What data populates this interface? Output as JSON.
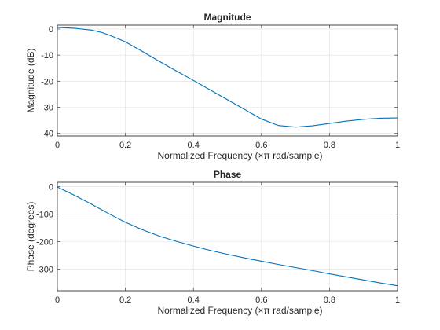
{
  "chart_data": [
    {
      "type": "line",
      "title": "Magnitude",
      "xlabel": "Normalized  Frequency    (×π  rad/sample)",
      "ylabel": "Magnitude (dB)",
      "xlim": [
        0,
        1
      ],
      "ylim": [
        -41,
        1.5
      ],
      "xticks": [
        0,
        0.2,
        0.4,
        0.6,
        0.8,
        1
      ],
      "xtick_labels": [
        "0",
        "0.2",
        "0.4",
        "0.6",
        "0.8",
        "1"
      ],
      "yticks": [
        0,
        -10,
        -20,
        -30,
        -40
      ],
      "ytick_labels": [
        "0",
        "-10",
        "-20",
        "-30",
        "-40"
      ],
      "grid": true,
      "color": "#0072bd",
      "x": [
        0,
        0.05,
        0.1,
        0.13,
        0.15,
        0.18,
        0.2,
        0.25,
        0.3,
        0.35,
        0.4,
        0.45,
        0.5,
        0.55,
        0.6,
        0.65,
        0.7,
        0.75,
        0.8,
        0.85,
        0.9,
        0.95,
        1.0
      ],
      "y": [
        0.6,
        0.3,
        -0.4,
        -1.3,
        -2.2,
        -3.8,
        -4.9,
        -8.6,
        -12.4,
        -16.1,
        -19.7,
        -23.4,
        -27.1,
        -30.8,
        -34.5,
        -37.0,
        -37.6,
        -37.1,
        -36.2,
        -35.3,
        -34.6,
        -34.2,
        -34.1
      ]
    },
    {
      "type": "line",
      "title": "Phase",
      "xlabel": "Normalized  Frequency    (×π  rad/sample)",
      "ylabel": "Phase (degrees)",
      "xlim": [
        0,
        1
      ],
      "ylim": [
        -378,
        15
      ],
      "xticks": [
        0,
        0.2,
        0.4,
        0.6,
        0.8,
        1
      ],
      "xtick_labels": [
        "0",
        "0.2",
        "0.4",
        "0.6",
        "0.8",
        "1"
      ],
      "yticks": [
        0,
        -100,
        -200,
        -300
      ],
      "ytick_labels": [
        "0",
        "-100",
        "-200",
        "-300"
      ],
      "grid": true,
      "color": "#0072bd",
      "x": [
        0,
        0.05,
        0.1,
        0.15,
        0.2,
        0.25,
        0.3,
        0.35,
        0.4,
        0.45,
        0.5,
        0.55,
        0.6,
        0.65,
        0.7,
        0.75,
        0.8,
        0.85,
        0.9,
        0.95,
        1.0
      ],
      "y": [
        -2,
        -32,
        -64,
        -98,
        -130,
        -157,
        -180,
        -199,
        -216,
        -232,
        -246,
        -259,
        -271,
        -283,
        -294,
        -305,
        -317,
        -328,
        -339,
        -350,
        -360
      ]
    }
  ]
}
